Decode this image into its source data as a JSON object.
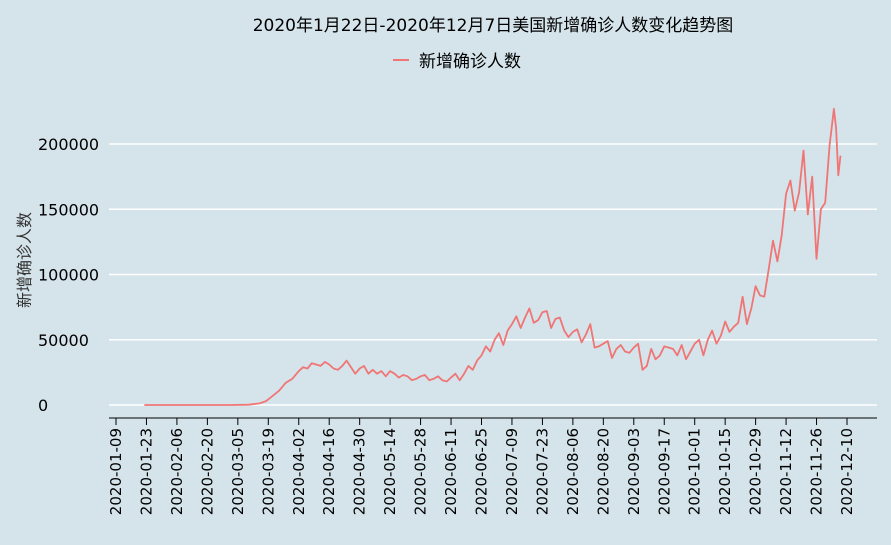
{
  "chart_data": {
    "type": "line",
    "title": "2020年1月22日-2020年12月7日美国新增确诊人数变化趋势图",
    "ylabel": "新增确诊人数",
    "xlabel": "",
    "legend": {
      "position": "top-center",
      "entries": [
        "新增确诊人数"
      ]
    },
    "grid": "horizontal",
    "x_range": [
      "2020-01-09",
      "2020-12-16"
    ],
    "ylim": [
      -10000,
      230000
    ],
    "y_ticks": [
      0,
      50000,
      100000,
      150000,
      200000
    ],
    "x_tick_labels": [
      "2020-01-09",
      "2020-01-23",
      "2020-02-06",
      "2020-02-20",
      "2020-03-05",
      "2020-03-19",
      "2020-04-02",
      "2020-04-16",
      "2020-04-30",
      "2020-05-14",
      "2020-05-28",
      "2020-06-11",
      "2020-06-25",
      "2020-07-09",
      "2020-07-23",
      "2020-08-06",
      "2020-08-20",
      "2020-09-03",
      "2020-09-17",
      "2020-10-01",
      "2020-10-15",
      "2020-10-29",
      "2020-11-12",
      "2020-11-26",
      "2020-12-10"
    ],
    "series": [
      {
        "name": "新增确诊人数",
        "color": "#f07575",
        "points": [
          [
            "2020-01-22",
            0
          ],
          [
            "2020-02-15",
            0
          ],
          [
            "2020-03-01",
            0
          ],
          [
            "2020-03-10",
            200
          ],
          [
            "2020-03-15",
            1200
          ],
          [
            "2020-03-18",
            3000
          ],
          [
            "2020-03-21",
            7000
          ],
          [
            "2020-03-24",
            11000
          ],
          [
            "2020-03-27",
            17000
          ],
          [
            "2020-03-30",
            20000
          ],
          [
            "2020-04-02",
            26000
          ],
          [
            "2020-04-04",
            29000
          ],
          [
            "2020-04-06",
            28000
          ],
          [
            "2020-04-08",
            32000
          ],
          [
            "2020-04-10",
            31000
          ],
          [
            "2020-04-12",
            30000
          ],
          [
            "2020-04-14",
            33000
          ],
          [
            "2020-04-16",
            31000
          ],
          [
            "2020-04-18",
            28000
          ],
          [
            "2020-04-20",
            27000
          ],
          [
            "2020-04-22",
            30000
          ],
          [
            "2020-04-24",
            34000
          ],
          [
            "2020-04-26",
            29000
          ],
          [
            "2020-04-28",
            24000
          ],
          [
            "2020-04-30",
            28000
          ],
          [
            "2020-05-02",
            30000
          ],
          [
            "2020-05-04",
            24000
          ],
          [
            "2020-05-06",
            27000
          ],
          [
            "2020-05-08",
            24000
          ],
          [
            "2020-05-10",
            26000
          ],
          [
            "2020-05-12",
            22000
          ],
          [
            "2020-05-14",
            26000
          ],
          [
            "2020-05-16",
            24000
          ],
          [
            "2020-05-18",
            21000
          ],
          [
            "2020-05-20",
            23000
          ],
          [
            "2020-05-22",
            22000
          ],
          [
            "2020-05-24",
            19000
          ],
          [
            "2020-05-26",
            20000
          ],
          [
            "2020-05-28",
            22000
          ],
          [
            "2020-05-30",
            23000
          ],
          [
            "2020-06-01",
            19000
          ],
          [
            "2020-06-03",
            20000
          ],
          [
            "2020-06-05",
            22000
          ],
          [
            "2020-06-07",
            19000
          ],
          [
            "2020-06-09",
            18000
          ],
          [
            "2020-06-11",
            21000
          ],
          [
            "2020-06-13",
            24000
          ],
          [
            "2020-06-15",
            19000
          ],
          [
            "2020-06-17",
            24000
          ],
          [
            "2020-06-19",
            30000
          ],
          [
            "2020-06-21",
            27000
          ],
          [
            "2020-06-23",
            34000
          ],
          [
            "2020-06-25",
            38000
          ],
          [
            "2020-06-27",
            45000
          ],
          [
            "2020-06-29",
            41000
          ],
          [
            "2020-07-01",
            50000
          ],
          [
            "2020-07-03",
            55000
          ],
          [
            "2020-07-05",
            46000
          ],
          [
            "2020-07-07",
            57000
          ],
          [
            "2020-07-09",
            62000
          ],
          [
            "2020-07-11",
            68000
          ],
          [
            "2020-07-13",
            59000
          ],
          [
            "2020-07-15",
            67000
          ],
          [
            "2020-07-17",
            74000
          ],
          [
            "2020-07-19",
            63000
          ],
          [
            "2020-07-21",
            65000
          ],
          [
            "2020-07-23",
            71000
          ],
          [
            "2020-07-25",
            72000
          ],
          [
            "2020-07-27",
            59000
          ],
          [
            "2020-07-29",
            66000
          ],
          [
            "2020-07-31",
            67000
          ],
          [
            "2020-08-02",
            57000
          ],
          [
            "2020-08-04",
            52000
          ],
          [
            "2020-08-06",
            56000
          ],
          [
            "2020-08-08",
            58000
          ],
          [
            "2020-08-10",
            48000
          ],
          [
            "2020-08-12",
            54000
          ],
          [
            "2020-08-14",
            62000
          ],
          [
            "2020-08-16",
            44000
          ],
          [
            "2020-08-18",
            45000
          ],
          [
            "2020-08-20",
            47000
          ],
          [
            "2020-08-22",
            49000
          ],
          [
            "2020-08-24",
            36000
          ],
          [
            "2020-08-26",
            43000
          ],
          [
            "2020-08-28",
            46000
          ],
          [
            "2020-08-30",
            41000
          ],
          [
            "2020-09-01",
            40000
          ],
          [
            "2020-09-03",
            44000
          ],
          [
            "2020-09-05",
            47000
          ],
          [
            "2020-09-07",
            27000
          ],
          [
            "2020-09-09",
            30000
          ],
          [
            "2020-09-11",
            43000
          ],
          [
            "2020-09-13",
            35000
          ],
          [
            "2020-09-15",
            38000
          ],
          [
            "2020-09-17",
            45000
          ],
          [
            "2020-09-19",
            44000
          ],
          [
            "2020-09-21",
            43000
          ],
          [
            "2020-09-23",
            38000
          ],
          [
            "2020-09-25",
            46000
          ],
          [
            "2020-09-27",
            35000
          ],
          [
            "2020-09-29",
            41000
          ],
          [
            "2020-10-01",
            47000
          ],
          [
            "2020-10-03",
            50000
          ],
          [
            "2020-10-05",
            38000
          ],
          [
            "2020-10-07",
            50000
          ],
          [
            "2020-10-09",
            57000
          ],
          [
            "2020-10-11",
            47000
          ],
          [
            "2020-10-13",
            53000
          ],
          [
            "2020-10-15",
            64000
          ],
          [
            "2020-10-17",
            56000
          ],
          [
            "2020-10-19",
            60000
          ],
          [
            "2020-10-21",
            63000
          ],
          [
            "2020-10-23",
            83000
          ],
          [
            "2020-10-25",
            62000
          ],
          [
            "2020-10-27",
            74000
          ],
          [
            "2020-10-29",
            91000
          ],
          [
            "2020-10-31",
            84000
          ],
          [
            "2020-11-02",
            83000
          ],
          [
            "2020-11-04",
            104000
          ],
          [
            "2020-11-06",
            126000
          ],
          [
            "2020-11-08",
            110000
          ],
          [
            "2020-11-10",
            130000
          ],
          [
            "2020-11-12",
            162000
          ],
          [
            "2020-11-14",
            172000
          ],
          [
            "2020-11-16",
            149000
          ],
          [
            "2020-11-18",
            163000
          ],
          [
            "2020-11-20",
            195000
          ],
          [
            "2020-11-22",
            146000
          ],
          [
            "2020-11-24",
            175000
          ],
          [
            "2020-11-26",
            112000
          ],
          [
            "2020-11-28",
            150000
          ],
          [
            "2020-11-30",
            155000
          ],
          [
            "2020-12-02",
            199000
          ],
          [
            "2020-12-04",
            227000
          ],
          [
            "2020-12-05",
            212000
          ],
          [
            "2020-12-06",
            176000
          ],
          [
            "2020-12-07",
            191000
          ]
        ]
      }
    ]
  }
}
